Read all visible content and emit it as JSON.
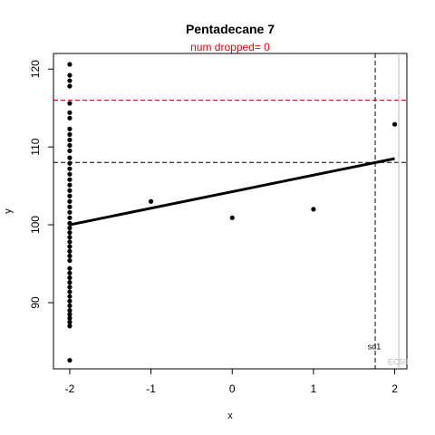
{
  "chart_data": {
    "type": "scatter",
    "title": "Pentadecane 7",
    "subtitle": "num dropped= 0",
    "xlabel": "x",
    "ylabel": "y",
    "xlim": [
      -2.2,
      2.15
    ],
    "ylim": [
      81.5,
      122
    ],
    "xticks": [
      -2,
      -1,
      0,
      1,
      2
    ],
    "yticks": [
      90,
      100,
      110,
      120
    ],
    "grid": false,
    "points": [
      {
        "x": -2,
        "y": 120.6
      },
      {
        "x": -2,
        "y": 119.2
      },
      {
        "x": -2,
        "y": 118.5
      },
      {
        "x": -2,
        "y": 117.8
      },
      {
        "x": -2,
        "y": 115.6
      },
      {
        "x": -2,
        "y": 114.4
      },
      {
        "x": -2,
        "y": 113.7
      },
      {
        "x": -2,
        "y": 112.3
      },
      {
        "x": -2,
        "y": 111.6
      },
      {
        "x": -2,
        "y": 110.9
      },
      {
        "x": -2,
        "y": 110.2
      },
      {
        "x": -2,
        "y": 109.5
      },
      {
        "x": -2,
        "y": 108.6
      },
      {
        "x": -2,
        "y": 107.9
      },
      {
        "x": -2,
        "y": 107.2
      },
      {
        "x": -2,
        "y": 106.5
      },
      {
        "x": -2,
        "y": 105.8
      },
      {
        "x": -2,
        "y": 105.1
      },
      {
        "x": -2,
        "y": 104.4
      },
      {
        "x": -2,
        "y": 103.7
      },
      {
        "x": -2,
        "y": 103.0
      },
      {
        "x": -2,
        "y": 102.3
      },
      {
        "x": -2,
        "y": 101.6
      },
      {
        "x": -2,
        "y": 100.9
      },
      {
        "x": -2,
        "y": 100.2
      },
      {
        "x": -2,
        "y": 99.6
      },
      {
        "x": -2,
        "y": 99.0
      },
      {
        "x": -2,
        "y": 98.4
      },
      {
        "x": -2,
        "y": 97.8
      },
      {
        "x": -2,
        "y": 97.2
      },
      {
        "x": -2,
        "y": 96.6
      },
      {
        "x": -2,
        "y": 96.0
      },
      {
        "x": -2,
        "y": 95.4
      },
      {
        "x": -2,
        "y": 94.4
      },
      {
        "x": -2,
        "y": 93.8
      },
      {
        "x": -2,
        "y": 93.2
      },
      {
        "x": -2,
        "y": 92.6
      },
      {
        "x": -2,
        "y": 92.0
      },
      {
        "x": -2,
        "y": 91.4
      },
      {
        "x": -2,
        "y": 90.8
      },
      {
        "x": -2,
        "y": 90.2
      },
      {
        "x": -2,
        "y": 89.6
      },
      {
        "x": -2,
        "y": 89.0
      },
      {
        "x": -2,
        "y": 88.5
      },
      {
        "x": -2,
        "y": 88.0
      },
      {
        "x": -2,
        "y": 87.5
      },
      {
        "x": -2,
        "y": 87.0
      },
      {
        "x": -2,
        "y": 82.6
      },
      {
        "x": -1,
        "y": 103.0
      },
      {
        "x": 0,
        "y": 100.9
      },
      {
        "x": 1,
        "y": 102.0
      },
      {
        "x": 2,
        "y": 112.9
      }
    ],
    "fit_line": {
      "x": [
        -2,
        2
      ],
      "y": [
        100.0,
        108.5
      ]
    },
    "hlines": [
      {
        "y": 116.0,
        "color": "#dd0000",
        "style": "dashed"
      },
      {
        "y": 108.0,
        "color": "#000000",
        "style": "dashed"
      }
    ],
    "vlines": [
      {
        "x": 1.76,
        "color": "#000000",
        "style": "dashed",
        "label": "sd1",
        "label_y": 84.0
      },
      {
        "x": 2.05,
        "color": "#bbbbbb",
        "style": "solid",
        "label": "EC50",
        "label_y": 82.0
      }
    ],
    "colors": {
      "title": "#000000",
      "subtitle": "#ff0000",
      "points": "#000000",
      "ec50": "#bbbbbb"
    }
  }
}
